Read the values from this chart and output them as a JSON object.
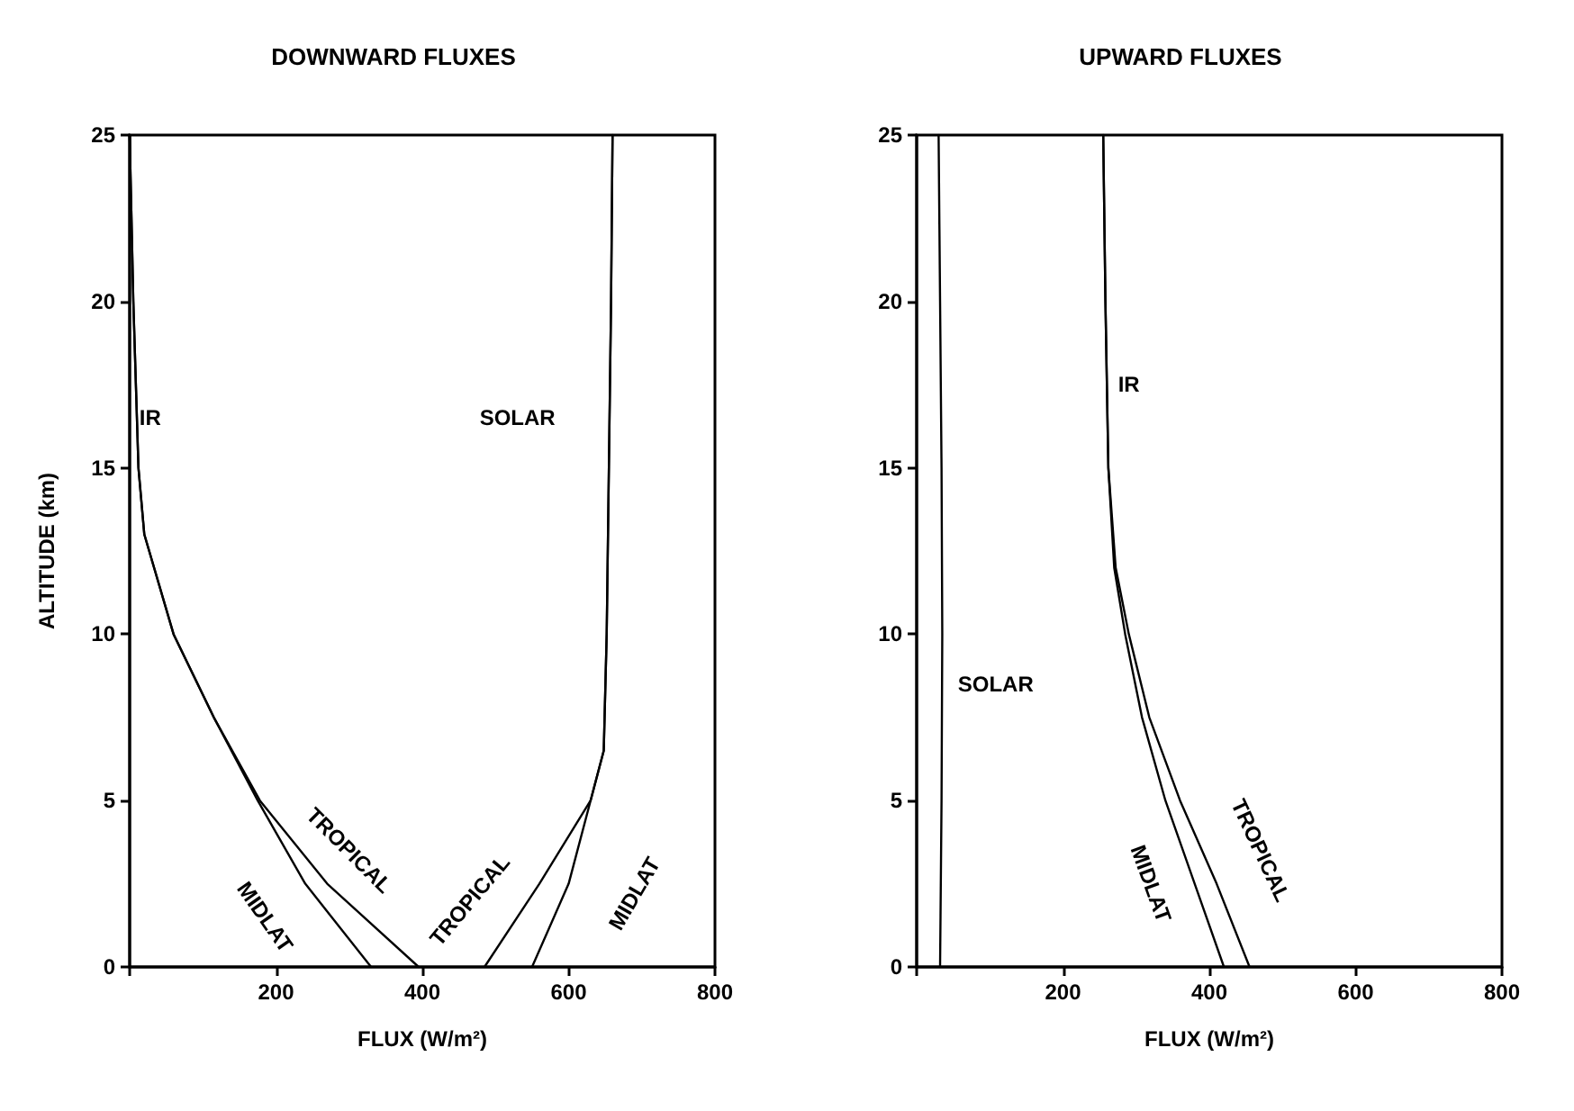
{
  "chart_data": [
    {
      "type": "line",
      "title": "DOWNWARD FLUXES",
      "xlabel": "FLUX (W/m²)",
      "ylabel": "ALTITUDE (km)",
      "xlim": [
        0,
        800
      ],
      "ylim": [
        0,
        25
      ],
      "xticks": [
        {
          "value": 0,
          "label": null
        },
        200,
        400,
        600,
        800
      ],
      "yticks": [
        0,
        5,
        10,
        15,
        20,
        25
      ],
      "grid": false,
      "marker": "none",
      "line_style": "solid",
      "series": [
        {
          "color": "#000000",
          "x": [
            0,
            5,
            12,
            20,
            60,
            115,
            178,
            270,
            395
          ],
          "values": [
            25,
            20,
            15,
            13,
            10,
            7.5,
            5,
            2.5,
            0
          ]
        },
        {
          "color": "#000000",
          "x": [
            0,
            5,
            12,
            20,
            60,
            115,
            175,
            240,
            330
          ],
          "values": [
            25,
            20,
            15,
            13,
            10,
            7.5,
            5,
            2.5,
            0
          ]
        },
        {
          "color": "#000000",
          "x": [
            660,
            658,
            655,
            652,
            648,
            630,
            560,
            485
          ],
          "values": [
            25,
            20,
            15,
            10,
            6.5,
            5,
            2.5,
            0
          ]
        },
        {
          "color": "#000000",
          "x": [
            660,
            658,
            655,
            652,
            648,
            630,
            600,
            550
          ],
          "values": [
            25,
            20,
            15,
            10,
            6.5,
            5,
            2.5,
            0
          ]
        }
      ],
      "annotations": [
        "IR",
        "SOLAR",
        "TROPICAL",
        "MIDLAT",
        "TROPICAL",
        "MIDLAT"
      ]
    },
    {
      "type": "line",
      "title": "UPWARD FLUXES",
      "xlabel": "FLUX (W/m²)",
      "xlim": [
        0,
        800
      ],
      "ylim": [
        0,
        25
      ],
      "xticks": [
        {
          "value": 0,
          "label": null
        },
        200,
        400,
        600,
        800
      ],
      "yticks": [
        0,
        5,
        10,
        15,
        20,
        25
      ],
      "grid": false,
      "marker": "none",
      "line_style": "solid",
      "series": [
        {
          "color": "#000000",
          "x": [
            30,
            32,
            34,
            35,
            34,
            32
          ],
          "values": [
            25,
            20,
            15,
            10,
            5,
            0
          ]
        },
        {
          "color": "#000000",
          "x": [
            255,
            258,
            262,
            270,
            285,
            308,
            340,
            380,
            420
          ],
          "values": [
            25,
            20,
            15,
            12,
            10,
            7.5,
            5,
            2.5,
            0
          ]
        },
        {
          "color": "#000000",
          "x": [
            255,
            258,
            262,
            272,
            290,
            318,
            360,
            410,
            455
          ],
          "values": [
            25,
            20,
            15,
            12,
            10,
            7.5,
            5,
            2.5,
            0
          ]
        }
      ],
      "annotations": [
        "SOLAR",
        "IR",
        "MIDLAT",
        "TROPICAL"
      ]
    }
  ]
}
